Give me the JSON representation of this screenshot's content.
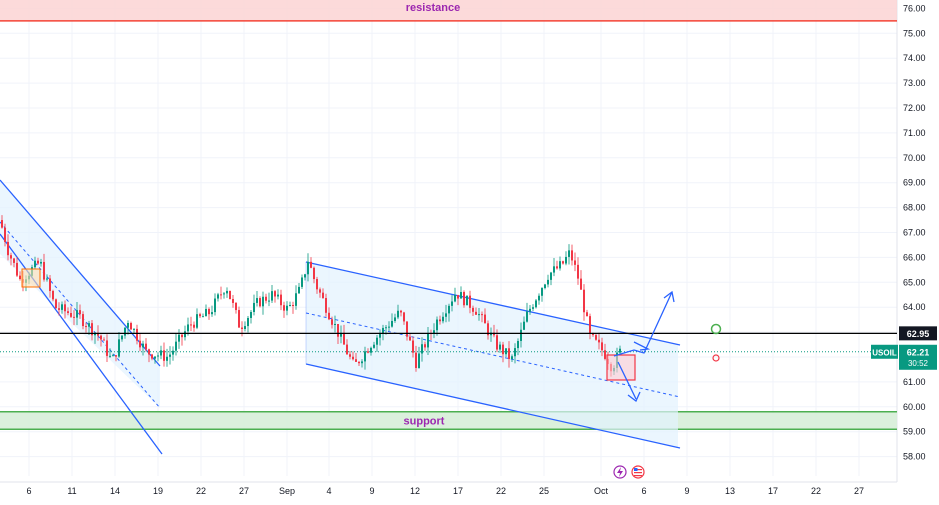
{
  "chart_data": {
    "type": "candlestick",
    "symbol": "USOIL",
    "x_ticks": [
      "6",
      "11",
      "14",
      "19",
      "22",
      "27",
      "Sep",
      "4",
      "9",
      "12",
      "17",
      "22",
      "25",
      "Oct",
      "6",
      "9",
      "13",
      "17",
      "22",
      "27"
    ],
    "y_ticks": [
      "58.00",
      "59.00",
      "60.00",
      "61.00",
      "62.00",
      "63.00",
      "64.00",
      "65.00",
      "66.00",
      "67.00",
      "68.00",
      "69.00",
      "70.00",
      "71.00",
      "72.00",
      "73.00",
      "74.00",
      "75.00",
      "76.00"
    ],
    "ylim": [
      57.6,
      76.6
    ],
    "grid": true,
    "resistance": {
      "label": "resistance",
      "low": 75.5,
      "high": 76.6,
      "color": "#f44336"
    },
    "support": {
      "label": "support",
      "low": 59.1,
      "high": 59.8,
      "color": "#4caf50"
    },
    "horizontal_level": {
      "value": 62.95,
      "label": "62.95"
    },
    "current_price": {
      "label": "USOIL",
      "value": "62.21",
      "countdown": "30:52",
      "color": "#089981"
    },
    "colors": {
      "up": "#089981",
      "down": "#f23645",
      "channel": "#2962ff",
      "channel_fill": "#e3f2fd"
    },
    "icons": [
      "lightning-icon",
      "us-flag-icon"
    ]
  }
}
